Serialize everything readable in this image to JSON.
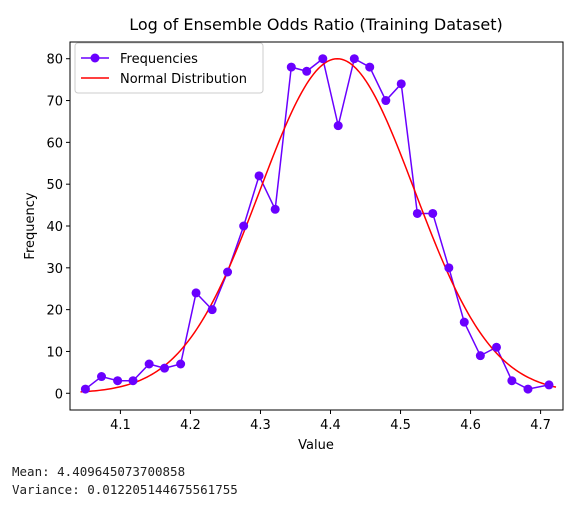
{
  "chart_data": {
    "type": "line",
    "title": "Log of Ensemble Odds Ratio (Training Dataset)",
    "xlabel": "Value",
    "ylabel": "Frequency",
    "xlim": [
      4.028,
      4.732
    ],
    "ylim": [
      -4,
      84
    ],
    "xticks": [
      4.1,
      4.2,
      4.3,
      4.4,
      4.5,
      4.6,
      4.7
    ],
    "yticks": [
      0,
      10,
      20,
      30,
      40,
      50,
      60,
      70,
      80
    ],
    "grid": false,
    "legend": "upper-left",
    "series": [
      {
        "name": "Frequencies",
        "color": "#6a00ff",
        "marker": "circle",
        "x": [
          4.05,
          4.073,
          4.096,
          4.118,
          4.141,
          4.163,
          4.186,
          4.208,
          4.231,
          4.253,
          4.276,
          4.298,
          4.321,
          4.344,
          4.366,
          4.389,
          4.411,
          4.434,
          4.456,
          4.479,
          4.501,
          4.524,
          4.546,
          4.569,
          4.591,
          4.614,
          4.637,
          4.659,
          4.682,
          4.712
        ],
        "values": [
          1,
          4,
          3,
          3,
          7,
          6,
          7,
          24,
          20,
          29,
          40,
          52,
          44,
          78,
          77,
          80,
          64,
          80,
          78,
          70,
          74,
          43,
          43,
          30,
          17,
          9,
          11,
          3,
          1,
          2
        ]
      },
      {
        "name": "Normal Distribution",
        "color": "#ff0000",
        "type": "normal-curve",
        "mean": 4.409645073700858,
        "std": 0.1104,
        "peak": 80,
        "x_range": [
          4.043,
          4.722
        ]
      }
    ]
  },
  "stats": {
    "mean_line": "Mean: 4.409645073700858",
    "variance_line": "Variance: 0.012205144675561755"
  }
}
